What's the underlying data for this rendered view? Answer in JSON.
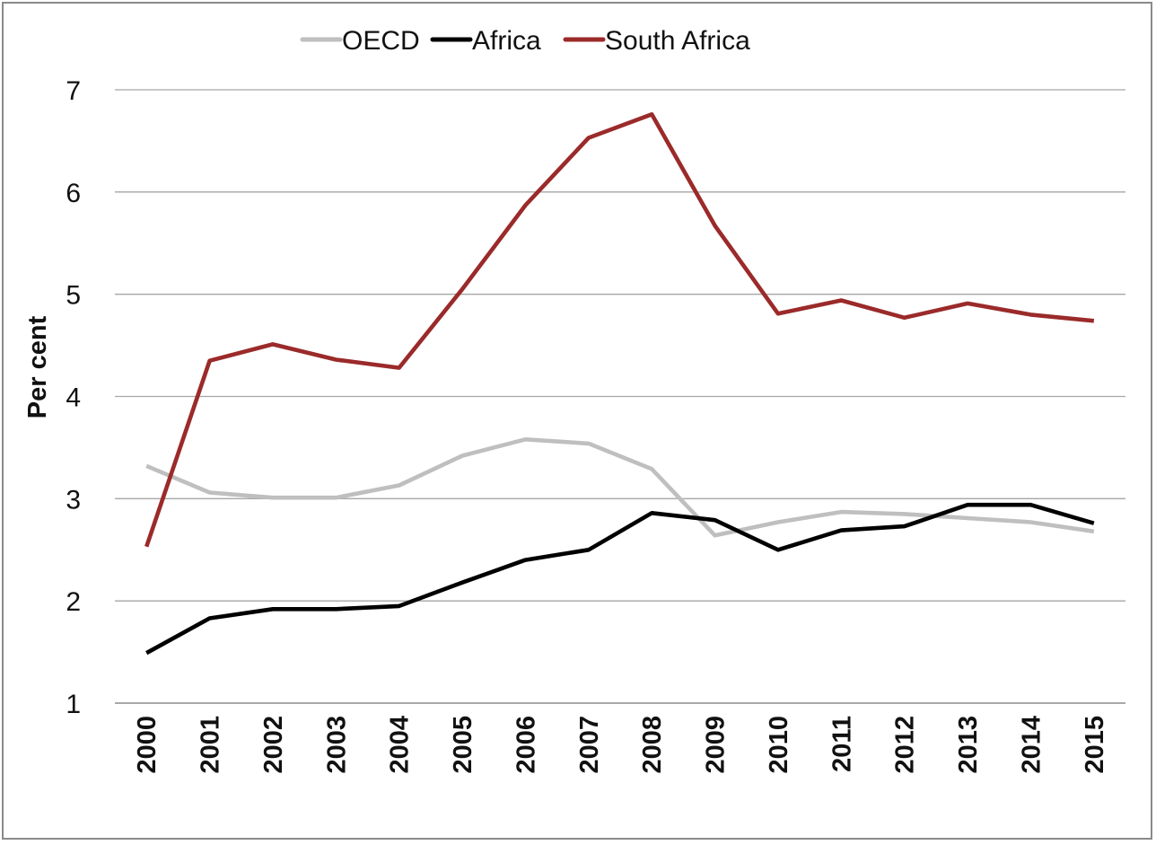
{
  "chart_data": {
    "type": "line",
    "title": "",
    "xlabel": "",
    "ylabel": "Per cent",
    "ylim": [
      1,
      7
    ],
    "yticks": [
      "1",
      "2",
      "3",
      "4",
      "5",
      "6",
      "7"
    ],
    "grid": true,
    "legend_position": "top",
    "x": [
      "2000",
      "2001",
      "2002",
      "2003",
      "2004",
      "2005",
      "2006",
      "2007",
      "2008",
      "2009",
      "2010",
      "2011",
      "2012",
      "2013",
      "2014",
      "2015"
    ],
    "series": [
      {
        "name": "OECD",
        "color": "#bfbfbf",
        "values": [
          3.32,
          3.06,
          3.01,
          3.01,
          3.13,
          3.42,
          3.58,
          3.54,
          3.29,
          2.64,
          2.77,
          2.87,
          2.85,
          2.81,
          2.77,
          2.68
        ]
      },
      {
        "name": "Africa",
        "color": "#000000",
        "values": [
          1.49,
          1.83,
          1.92,
          1.92,
          1.95,
          2.18,
          2.4,
          2.5,
          2.86,
          2.79,
          2.5,
          2.69,
          2.73,
          2.94,
          2.94,
          2.76
        ]
      },
      {
        "name": "South Africa",
        "color": "#9b2a2a",
        "values": [
          2.53,
          4.35,
          4.51,
          4.36,
          4.28,
          5.05,
          5.87,
          6.53,
          6.76,
          5.67,
          4.81,
          4.94,
          4.77,
          4.91,
          4.8,
          4.74
        ]
      }
    ]
  }
}
